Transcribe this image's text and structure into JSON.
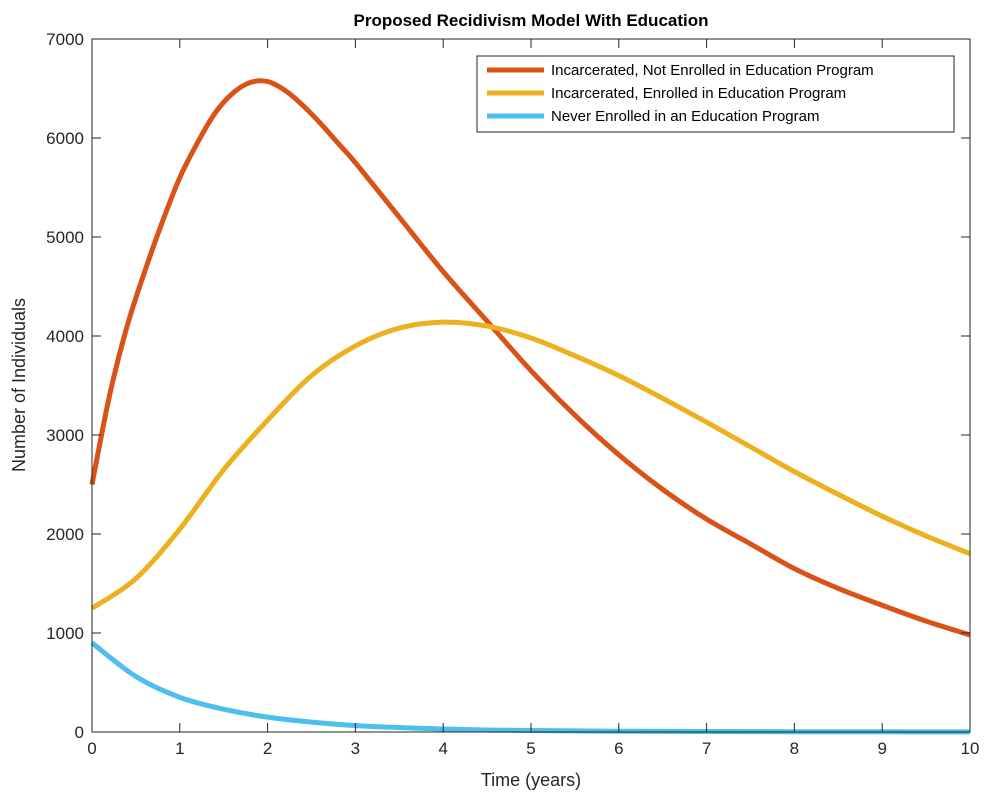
{
  "chart_data": {
    "type": "line",
    "title": "Proposed Recidivism Model With Education",
    "xlabel": "Time (years)",
    "ylabel": "Number of Individuals",
    "xlim": [
      0,
      10
    ],
    "ylim": [
      0,
      7000
    ],
    "xticks": [
      0,
      1,
      2,
      3,
      4,
      5,
      6,
      7,
      8,
      9,
      10
    ],
    "yticks": [
      0,
      1000,
      2000,
      3000,
      4000,
      5000,
      6000,
      7000
    ],
    "grid": false,
    "legend_position": "top-right",
    "series": [
      {
        "name": "Incarcerated, Not Enrolled in Education Program",
        "color": "#D95319",
        "x": [
          0,
          0.2,
          0.4,
          0.6,
          0.8,
          1.0,
          1.2,
          1.4,
          1.6,
          1.8,
          2.0,
          2.2,
          2.4,
          2.6,
          2.8,
          3.0,
          3.5,
          4.0,
          4.5,
          5.0,
          5.5,
          6.0,
          6.5,
          7.0,
          7.5,
          8.0,
          8.5,
          9.0,
          9.5,
          10.0
        ],
        "y": [
          2500,
          3400,
          4100,
          4650,
          5150,
          5600,
          5950,
          6250,
          6450,
          6560,
          6570,
          6480,
          6330,
          6150,
          5950,
          5750,
          5200,
          4650,
          4150,
          3650,
          3200,
          2800,
          2450,
          2150,
          1900,
          1650,
          1450,
          1280,
          1120,
          980
        ]
      },
      {
        "name": "Incarcerated, Enrolled in Education Program",
        "color": "#EDB120",
        "x": [
          0,
          0.5,
          1.0,
          1.5,
          2.0,
          2.5,
          3.0,
          3.5,
          4.0,
          4.5,
          5.0,
          5.5,
          6.0,
          6.5,
          7.0,
          7.5,
          8.0,
          8.5,
          9.0,
          9.5,
          10.0
        ],
        "y": [
          1250,
          1550,
          2050,
          2650,
          3150,
          3600,
          3900,
          4080,
          4140,
          4100,
          3980,
          3800,
          3600,
          3370,
          3130,
          2880,
          2630,
          2400,
          2180,
          1980,
          1800
        ]
      },
      {
        "name": "Never Enrolled in an Education Program",
        "color": "#4DBEEE",
        "x": [
          0,
          0.5,
          1.0,
          1.5,
          2.0,
          2.5,
          3.0,
          3.5,
          4.0,
          4.5,
          5.0,
          6.0,
          7.0,
          8.0,
          9.0,
          10.0
        ],
        "y": [
          900,
          560,
          350,
          230,
          150,
          100,
          65,
          45,
          30,
          20,
          15,
          8,
          5,
          3,
          2,
          1
        ]
      }
    ]
  }
}
